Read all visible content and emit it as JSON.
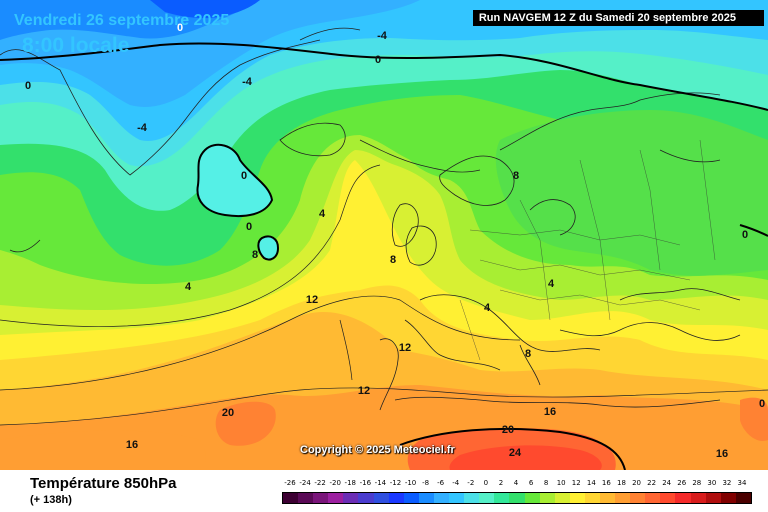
{
  "header": {
    "date": "Vendredi 26 septembre 2025",
    "local_time": "8:00 locale",
    "run": "Run NAVGEM 12 Z du Samedi 20 septembre 2025"
  },
  "copyright": "Copyright © 2025 Meteociel.fr",
  "footer": {
    "parameter": "Température 850hPa",
    "lead": "(+ 138h)"
  },
  "legend": {
    "values": [
      "-26",
      "-24",
      "-22",
      "-20",
      "-18",
      "-16",
      "-14",
      "-12",
      "-10",
      "-8",
      "-6",
      "-4",
      "-2",
      "0",
      "2",
      "4",
      "6",
      "8",
      "10",
      "12",
      "14",
      "16",
      "18",
      "20",
      "22",
      "24",
      "26",
      "28",
      "30",
      "32",
      "34"
    ],
    "colors": [
      "#3d0033",
      "#5a0a56",
      "#7a157a",
      "#9c1fa0",
      "#6b2db5",
      "#4a3ccf",
      "#2f4fe0",
      "#1a38ff",
      "#0a5cff",
      "#1a8cff",
      "#33b0ff",
      "#33c5ff",
      "#4ce0e8",
      "#55f0c8",
      "#33e89a",
      "#33e06c",
      "#66e83a",
      "#a8ee33",
      "#d8f033",
      "#fff033",
      "#ffd633",
      "#ffba33",
      "#ff9e33",
      "#ff8233",
      "#ff6633",
      "#ff4a2e",
      "#f52a2a",
      "#d81c1c",
      "#b00e0e",
      "#800000",
      "#4a0000"
    ]
  },
  "contour_labels": [
    {
      "text": "0",
      "light": true
    },
    {
      "text": "-4",
      "light": false
    },
    {
      "text": "-4",
      "light": false
    },
    {
      "text": "0",
      "light": false
    },
    {
      "text": "-4",
      "light": false
    },
    {
      "text": "0",
      "light": false
    },
    {
      "text": "0",
      "light": false
    },
    {
      "text": "0",
      "light": false
    },
    {
      "text": "4",
      "light": false
    },
    {
      "text": "4",
      "light": false
    },
    {
      "text": "12",
      "light": false
    },
    {
      "text": "12",
      "light": false
    },
    {
      "text": "12",
      "light": false
    },
    {
      "text": "20",
      "light": false
    },
    {
      "text": "16",
      "light": false
    },
    {
      "text": "16",
      "light": false
    },
    {
      "text": "20",
      "light": false
    },
    {
      "text": "24",
      "light": false
    },
    {
      "text": "16",
      "light": false
    },
    {
      "text": "8",
      "light": false
    },
    {
      "text": "8",
      "light": false
    },
    {
      "text": "4",
      "light": false
    },
    {
      "text": "4",
      "light": false
    },
    {
      "text": "8",
      "light": false
    },
    {
      "text": "0",
      "light": false
    },
    {
      "text": "8",
      "light": false
    },
    {
      "text": "0",
      "light": false
    }
  ]
}
